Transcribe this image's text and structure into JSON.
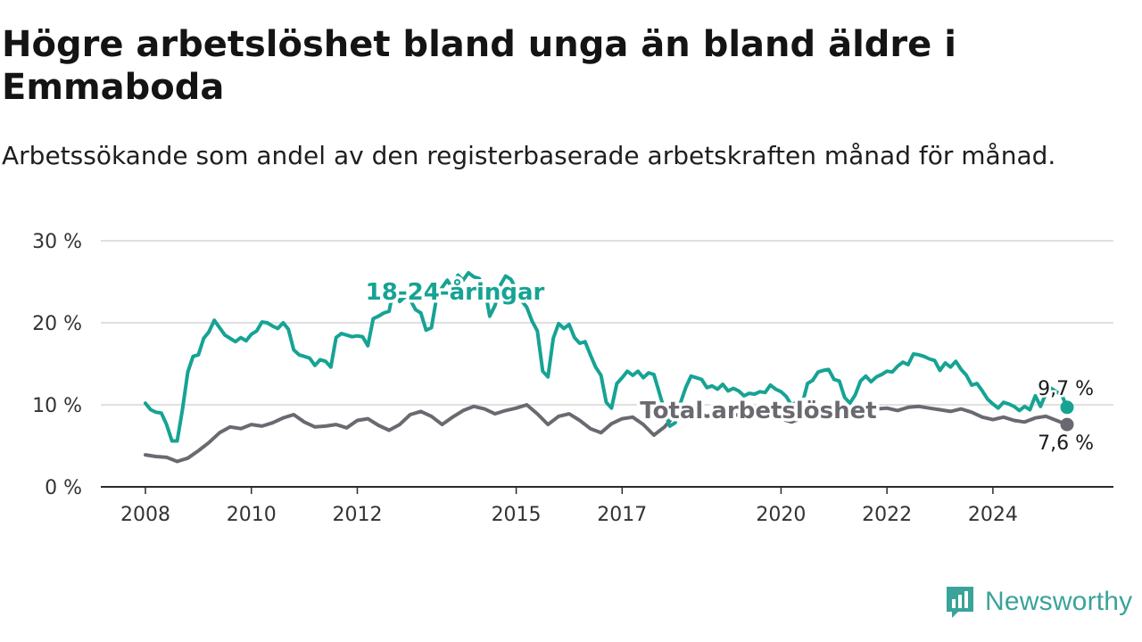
{
  "header": {
    "title": "Högre arbetslöshet bland unga än bland äldre i Emmaboda",
    "subtitle": "Arbetssökande som andel av den registerbaserade arbetskraften månad för månad."
  },
  "brand": {
    "name": "Newsworthy",
    "logo_icon": "chart-bars-icon",
    "color": "#3aa39a"
  },
  "chart_data": {
    "type": "line",
    "ylim": [
      0,
      30
    ],
    "yticks": [
      0,
      10,
      20,
      30
    ],
    "ytick_labels": [
      "0 %",
      "10 %",
      "20 %",
      "30 %"
    ],
    "xlim": [
      2008,
      2025.4
    ],
    "xticks": [
      2008,
      2010,
      2012,
      2015,
      2017,
      2020,
      2022,
      2024
    ],
    "xtick_labels": [
      "2008",
      "2010",
      "2012",
      "2015",
      "2017",
      "2020",
      "2022",
      "2024"
    ],
    "grid": true,
    "series": [
      {
        "name": "18-24-åringar",
        "color": "#16a394",
        "end_label": "9,7 %",
        "points": [
          [
            2008.0,
            10.2
          ],
          [
            2008.1,
            9.4
          ],
          [
            2008.2,
            9.1
          ],
          [
            2008.3,
            9.0
          ],
          [
            2008.4,
            7.6
          ],
          [
            2008.5,
            5.6
          ],
          [
            2008.6,
            5.6
          ],
          [
            2008.7,
            9.5
          ],
          [
            2008.8,
            14.0
          ],
          [
            2008.9,
            15.9
          ],
          [
            2009.0,
            16.1
          ],
          [
            2009.1,
            18.1
          ],
          [
            2009.2,
            18.9
          ],
          [
            2009.3,
            20.3
          ],
          [
            2009.4,
            19.4
          ],
          [
            2009.5,
            18.5
          ],
          [
            2009.6,
            18.1
          ],
          [
            2009.7,
            17.7
          ],
          [
            2009.8,
            18.2
          ],
          [
            2009.9,
            17.8
          ],
          [
            2010.0,
            18.6
          ],
          [
            2010.1,
            19.0
          ],
          [
            2010.2,
            20.1
          ],
          [
            2010.3,
            20.0
          ],
          [
            2010.4,
            19.6
          ],
          [
            2010.5,
            19.3
          ],
          [
            2010.6,
            20.0
          ],
          [
            2010.7,
            19.2
          ],
          [
            2010.8,
            16.7
          ],
          [
            2010.9,
            16.1
          ],
          [
            2011.0,
            15.9
          ],
          [
            2011.1,
            15.7
          ],
          [
            2011.2,
            14.8
          ],
          [
            2011.3,
            15.5
          ],
          [
            2011.4,
            15.3
          ],
          [
            2011.5,
            14.6
          ],
          [
            2011.6,
            18.2
          ],
          [
            2011.7,
            18.7
          ],
          [
            2011.8,
            18.5
          ],
          [
            2011.9,
            18.3
          ],
          [
            2012.0,
            18.4
          ],
          [
            2012.1,
            18.3
          ],
          [
            2012.2,
            17.2
          ],
          [
            2012.3,
            20.5
          ],
          [
            2012.4,
            20.8
          ],
          [
            2012.5,
            21.2
          ],
          [
            2012.6,
            21.4
          ],
          [
            2012.7,
            24.6
          ],
          [
            2012.8,
            22.6
          ],
          [
            2012.9,
            23.2
          ],
          [
            2013.0,
            22.8
          ],
          [
            2013.1,
            21.6
          ],
          [
            2013.2,
            21.2
          ],
          [
            2013.3,
            19.1
          ],
          [
            2013.4,
            19.4
          ],
          [
            2013.5,
            23.2
          ],
          [
            2013.6,
            24.3
          ],
          [
            2013.7,
            25.2
          ],
          [
            2013.8,
            24.1
          ],
          [
            2013.9,
            25.8
          ],
          [
            2014.0,
            25.2
          ],
          [
            2014.1,
            26.1
          ],
          [
            2014.2,
            25.6
          ],
          [
            2014.3,
            25.4
          ],
          [
            2014.4,
            24.4
          ],
          [
            2014.5,
            20.8
          ],
          [
            2014.6,
            22.1
          ],
          [
            2014.7,
            24.6
          ],
          [
            2014.8,
            25.7
          ],
          [
            2014.9,
            25.3
          ],
          [
            2015.0,
            24.1
          ],
          [
            2015.1,
            22.7
          ],
          [
            2015.2,
            21.9
          ],
          [
            2015.3,
            20.2
          ],
          [
            2015.4,
            19.0
          ],
          [
            2015.5,
            14.1
          ],
          [
            2015.6,
            13.4
          ],
          [
            2015.7,
            18.1
          ],
          [
            2015.8,
            19.9
          ],
          [
            2015.9,
            19.3
          ],
          [
            2016.0,
            19.8
          ],
          [
            2016.1,
            18.2
          ],
          [
            2016.2,
            17.5
          ],
          [
            2016.3,
            17.7
          ],
          [
            2016.4,
            16.1
          ],
          [
            2016.5,
            14.6
          ],
          [
            2016.6,
            13.6
          ],
          [
            2016.7,
            10.3
          ],
          [
            2016.8,
            9.6
          ],
          [
            2016.9,
            12.6
          ],
          [
            2017.0,
            13.3
          ],
          [
            2017.1,
            14.1
          ],
          [
            2017.2,
            13.6
          ],
          [
            2017.3,
            14.1
          ],
          [
            2017.4,
            13.3
          ],
          [
            2017.5,
            13.9
          ],
          [
            2017.6,
            13.7
          ],
          [
            2017.7,
            11.5
          ],
          [
            2017.8,
            9.3
          ],
          [
            2017.9,
            7.4
          ],
          [
            2018.0,
            7.8
          ],
          [
            2018.1,
            10.2
          ],
          [
            2018.2,
            12.1
          ],
          [
            2018.3,
            13.5
          ],
          [
            2018.4,
            13.3
          ],
          [
            2018.5,
            13.1
          ],
          [
            2018.6,
            12.1
          ],
          [
            2018.7,
            12.3
          ],
          [
            2018.8,
            11.9
          ],
          [
            2018.9,
            12.5
          ],
          [
            2019.0,
            11.7
          ],
          [
            2019.1,
            12.0
          ],
          [
            2019.2,
            11.7
          ],
          [
            2019.3,
            11.1
          ],
          [
            2019.4,
            11.4
          ],
          [
            2019.5,
            11.3
          ],
          [
            2019.6,
            11.6
          ],
          [
            2019.7,
            11.5
          ],
          [
            2019.8,
            12.4
          ],
          [
            2019.9,
            11.9
          ],
          [
            2020.0,
            11.6
          ],
          [
            2020.1,
            11.0
          ],
          [
            2020.2,
            9.9
          ],
          [
            2020.3,
            10.4
          ],
          [
            2020.4,
            10.1
          ],
          [
            2020.5,
            12.6
          ],
          [
            2020.6,
            13.0
          ],
          [
            2020.7,
            14.0
          ],
          [
            2020.8,
            14.2
          ],
          [
            2020.9,
            14.3
          ],
          [
            2021.0,
            13.1
          ],
          [
            2021.1,
            12.9
          ],
          [
            2021.2,
            10.9
          ],
          [
            2021.3,
            10.2
          ],
          [
            2021.4,
            11.2
          ],
          [
            2021.5,
            12.9
          ],
          [
            2021.6,
            13.5
          ],
          [
            2021.7,
            12.8
          ],
          [
            2021.8,
            13.4
          ],
          [
            2021.9,
            13.7
          ],
          [
            2022.0,
            14.1
          ],
          [
            2022.1,
            14.0
          ],
          [
            2022.2,
            14.7
          ],
          [
            2022.3,
            15.2
          ],
          [
            2022.4,
            14.9
          ],
          [
            2022.5,
            16.2
          ],
          [
            2022.6,
            16.1
          ],
          [
            2022.7,
            15.9
          ],
          [
            2022.8,
            15.6
          ],
          [
            2022.9,
            15.4
          ],
          [
            2023.0,
            14.2
          ],
          [
            2023.1,
            15.1
          ],
          [
            2023.2,
            14.6
          ],
          [
            2023.3,
            15.3
          ],
          [
            2023.4,
            14.3
          ],
          [
            2023.5,
            13.6
          ],
          [
            2023.6,
            12.4
          ],
          [
            2023.7,
            12.6
          ],
          [
            2023.8,
            11.7
          ],
          [
            2023.9,
            10.7
          ],
          [
            2024.0,
            10.1
          ],
          [
            2024.1,
            9.6
          ],
          [
            2024.2,
            10.3
          ],
          [
            2024.3,
            10.1
          ],
          [
            2024.4,
            9.8
          ],
          [
            2024.5,
            9.3
          ],
          [
            2024.6,
            9.8
          ],
          [
            2024.7,
            9.4
          ],
          [
            2024.8,
            11.1
          ],
          [
            2024.9,
            9.8
          ],
          [
            2025.0,
            11.4
          ],
          [
            2025.1,
            12.0
          ],
          [
            2025.2,
            11.6
          ],
          [
            2025.3,
            11.2
          ],
          [
            2025.4,
            9.7
          ]
        ]
      },
      {
        "name": "Total arbetslöshet",
        "color": "#6b6970",
        "end_label": "7,6 %",
        "points": [
          [
            2008.0,
            3.9
          ],
          [
            2008.2,
            3.7
          ],
          [
            2008.4,
            3.6
          ],
          [
            2008.6,
            3.1
          ],
          [
            2008.8,
            3.5
          ],
          [
            2009.0,
            4.4
          ],
          [
            2009.2,
            5.4
          ],
          [
            2009.4,
            6.6
          ],
          [
            2009.6,
            7.3
          ],
          [
            2009.8,
            7.1
          ],
          [
            2010.0,
            7.6
          ],
          [
            2010.2,
            7.4
          ],
          [
            2010.4,
            7.8
          ],
          [
            2010.6,
            8.4
          ],
          [
            2010.8,
            8.8
          ],
          [
            2011.0,
            7.9
          ],
          [
            2011.2,
            7.3
          ],
          [
            2011.4,
            7.4
          ],
          [
            2011.6,
            7.6
          ],
          [
            2011.8,
            7.2
          ],
          [
            2012.0,
            8.1
          ],
          [
            2012.2,
            8.3
          ],
          [
            2012.4,
            7.5
          ],
          [
            2012.6,
            6.9
          ],
          [
            2012.8,
            7.6
          ],
          [
            2013.0,
            8.8
          ],
          [
            2013.2,
            9.2
          ],
          [
            2013.4,
            8.6
          ],
          [
            2013.6,
            7.6
          ],
          [
            2013.8,
            8.5
          ],
          [
            2014.0,
            9.3
          ],
          [
            2014.2,
            9.8
          ],
          [
            2014.4,
            9.5
          ],
          [
            2014.6,
            8.9
          ],
          [
            2014.8,
            9.3
          ],
          [
            2015.0,
            9.6
          ],
          [
            2015.2,
            10.0
          ],
          [
            2015.4,
            8.9
          ],
          [
            2015.6,
            7.6
          ],
          [
            2015.8,
            8.6
          ],
          [
            2016.0,
            8.9
          ],
          [
            2016.2,
            8.1
          ],
          [
            2016.4,
            7.1
          ],
          [
            2016.6,
            6.6
          ],
          [
            2016.8,
            7.7
          ],
          [
            2017.0,
            8.3
          ],
          [
            2017.2,
            8.5
          ],
          [
            2017.4,
            7.6
          ],
          [
            2017.6,
            6.3
          ],
          [
            2017.8,
            7.3
          ],
          [
            2018.0,
            8.8
          ],
          [
            2018.2,
            9.3
          ],
          [
            2018.4,
            9.0
          ],
          [
            2018.6,
            8.6
          ],
          [
            2018.8,
            8.9
          ],
          [
            2019.0,
            8.6
          ],
          [
            2019.2,
            8.8
          ],
          [
            2019.4,
            8.5
          ],
          [
            2019.6,
            8.7
          ],
          [
            2019.8,
            8.6
          ],
          [
            2020.0,
            8.3
          ],
          [
            2020.2,
            7.9
          ],
          [
            2020.4,
            8.4
          ],
          [
            2020.6,
            9.1
          ],
          [
            2020.8,
            9.4
          ],
          [
            2021.0,
            9.0
          ],
          [
            2021.2,
            8.3
          ],
          [
            2021.4,
            8.8
          ],
          [
            2021.6,
            9.3
          ],
          [
            2021.8,
            9.5
          ],
          [
            2022.0,
            9.6
          ],
          [
            2022.2,
            9.3
          ],
          [
            2022.4,
            9.7
          ],
          [
            2022.6,
            9.8
          ],
          [
            2022.8,
            9.6
          ],
          [
            2023.0,
            9.4
          ],
          [
            2023.2,
            9.2
          ],
          [
            2023.4,
            9.5
          ],
          [
            2023.6,
            9.1
          ],
          [
            2023.8,
            8.5
          ],
          [
            2024.0,
            8.2
          ],
          [
            2024.2,
            8.5
          ],
          [
            2024.4,
            8.1
          ],
          [
            2024.6,
            7.9
          ],
          [
            2024.8,
            8.4
          ],
          [
            2025.0,
            8.6
          ],
          [
            2025.2,
            8.1
          ],
          [
            2025.4,
            7.6
          ]
        ]
      }
    ]
  }
}
